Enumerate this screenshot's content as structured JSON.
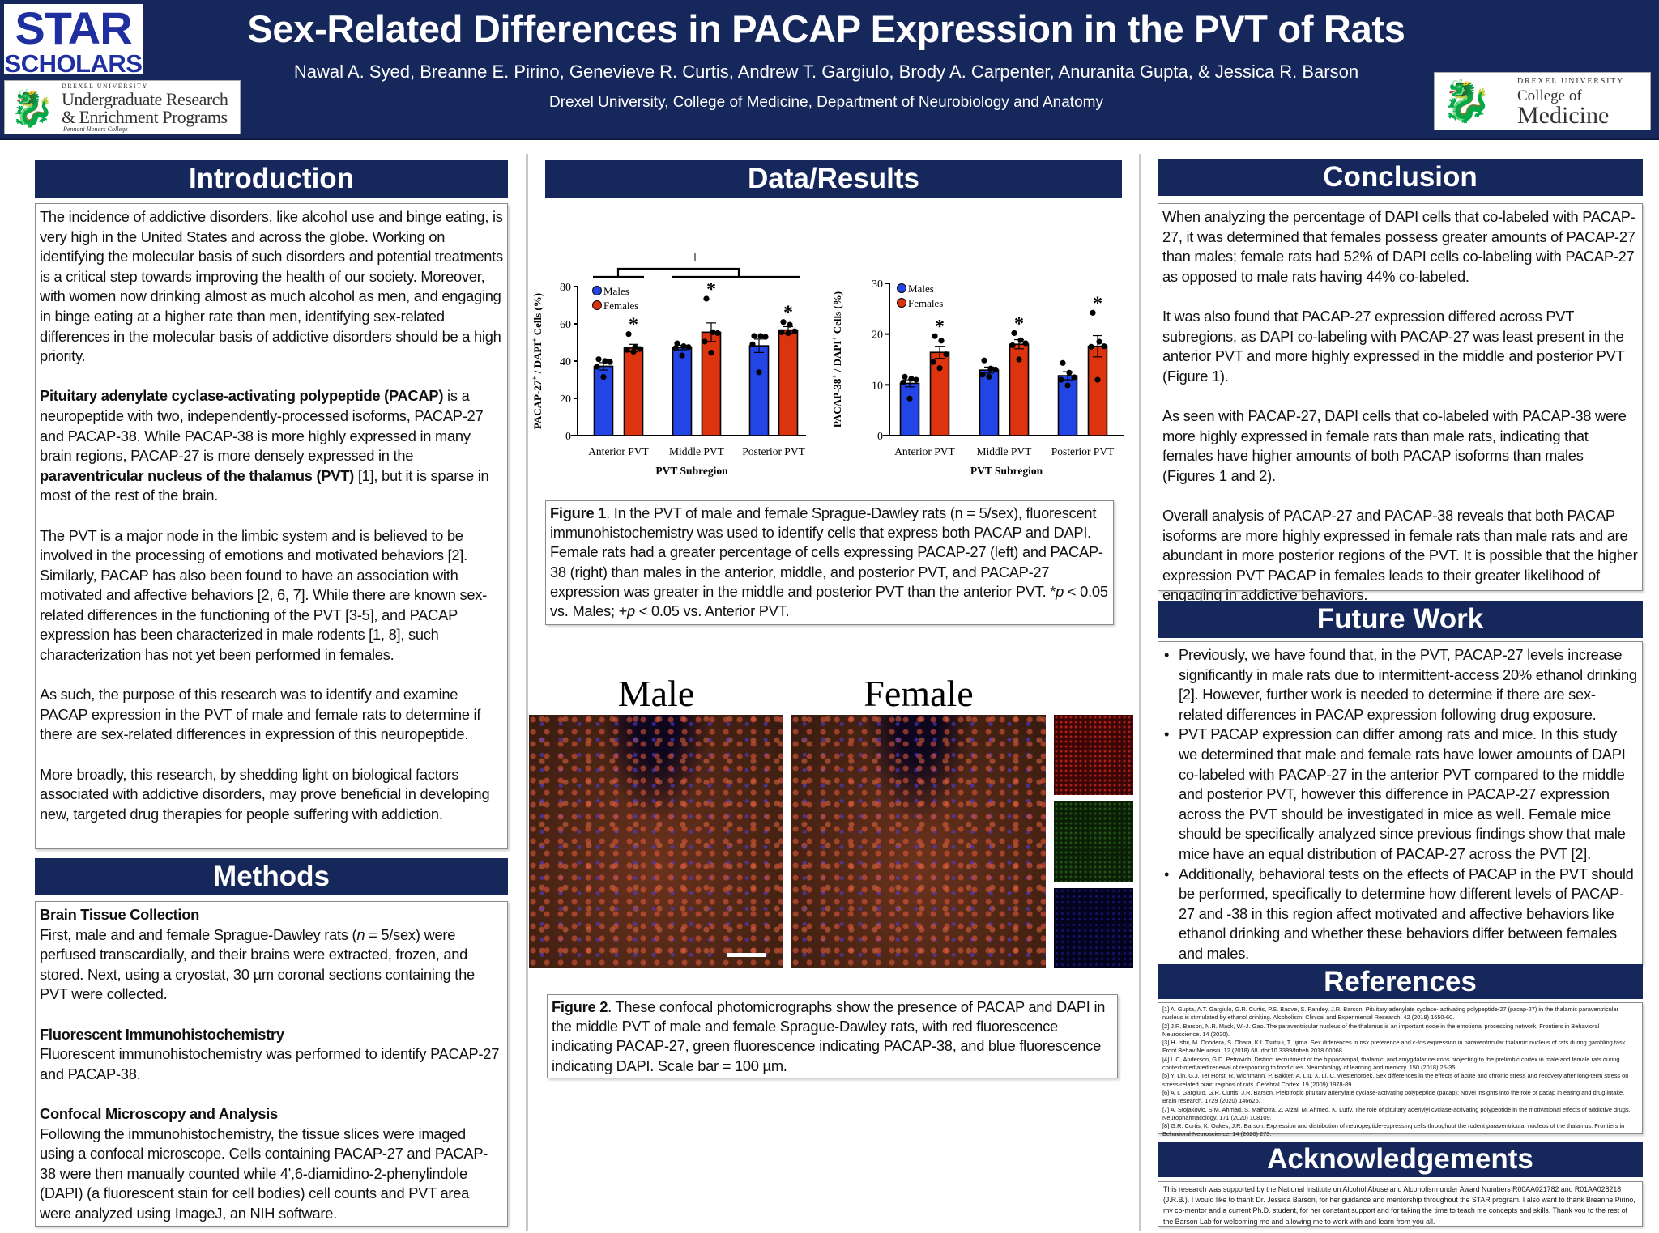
{
  "header": {
    "title": "Sex-Related Differences in PACAP Expression in the PVT of Rats",
    "authors": "Nawal A. Syed, Breanne E. Pirino, Genevieve R. Curtis, Andrew T. Gargiulo, Brody A. Carpenter, Anuranita Gupta, & Jessica R. Barson",
    "affiliation": "Drexel University, College of Medicine, Department of Neurobiology and Anatomy"
  },
  "logos": {
    "star_line1": "STAR",
    "star_line2": "SCHOLARS",
    "ure_top": "DREXEL UNIVERSITY",
    "ure_line1": "Undergraduate Research",
    "ure_line2": "& Enrichment Programs",
    "ure_bottom": "Pennoni Honors College",
    "med_top": "DREXEL UNIVERSITY",
    "med_line1": "College of",
    "med_line2": "Medicine"
  },
  "introduction": {
    "heading": "Introduction",
    "p1": "The incidence of addictive disorders, like alcohol use and binge eating, is very high in the United States and across the globe. Working on identifying the molecular basis of such disorders and potential treatments is a critical step towards improving the health of our society. Moreover, with women now drinking almost as much alcohol as men, and engaging in binge eating at a higher rate than men, identifying sex-related differences in the molecular basis of addictive disorders should be a high priority.",
    "p2_bold1": "Pituitary adenylate cyclase-activating polypeptide (PACAP)",
    "p2_text1": " is a neuropeptide with two, independently-processed isoforms, PACAP-27 and PACAP-38. While PACAP-38 is more highly expressed in many brain regions, PACAP-27 is more densely expressed in the ",
    "p2_bold2": "paraventricular nucleus of the thalamus (PVT)",
    "p2_text2": " [1], but it is sparse in most of the rest of the brain.",
    "p3": "The PVT is a major node in the limbic system and is believed to be involved in the processing of emotions and motivated behaviors [2]. Similarly, PACAP has also been found to have an association with motivated and affective behaviors [2, 6, 7]. While there are known sex-related differences in the functioning of the PVT [3-5], and PACAP expression has been characterized in male rodents [1, 8], such characterization has not yet been performed in females.",
    "p4": "As such, the purpose of this research was to identify and examine PACAP expression in the PVT of male and female rats to determine if there are sex-related differences in expression of this neuropeptide.",
    "p5": "More broadly, this research, by shedding light on biological factors associated with addictive disorders, may prove beneficial in developing new, targeted drug therapies for people suffering with addiction."
  },
  "methods": {
    "heading": "Methods",
    "s1_title": "Brain Tissue Collection",
    "s1_a": "First, male and and female Sprague-Dawley rats (",
    "s1_n": "n",
    "s1_b": " = 5/sex) were perfused transcardially, and their brains were extracted, frozen, and stored. Next, using a cryostat, 30 µm coronal sections containing the PVT were collected.",
    "s2_title": "Fluorescent Immunohistochemistry",
    "s2": "Fluorescent immunohistochemistry was performed to identify PACAP-27 and PACAP-38.",
    "s3_title": "Confocal Microscopy and Analysis",
    "s3": "Following the immunohistochemistry, the tissue slices were imaged using a confocal microscope. Cells containing PACAP-27 and PACAP-38 were then manually counted while 4',6-diamidino-2-phenylindole (DAPI) (a fluorescent stain for cell bodies) cell counts and PVT area were analyzed using ImageJ, an NIH software."
  },
  "results": {
    "heading": "Data/Results",
    "fig1_label": "Figure 1",
    "fig1_a": ". In the PVT of male and female Sprague-Dawley rats (n = 5/sex), fluorescent immunohistochemistry was used to identify cells that express both PACAP and DAPI. Female rats had a greater percentage of cells expressing PACAP-27 (left) and PACAP-38 (right) than males in the anterior, middle, and posterior PVT, and PACAP-27 expression was greater in the middle and posterior PVT than the anterior PVT. *",
    "fig1_p1": "p",
    "fig1_b": " < 0.05 vs. Males; +",
    "fig1_p2": "p",
    "fig1_c": " < 0.05 vs. Anterior PVT.",
    "male_label": "Male",
    "female_label": "Female",
    "fig2_label": "Figure 2",
    "fig2_text": ". These confocal photomicrographs show the presence of PACAP and DAPI in the middle PVT of male and female Sprague-Dawley rats, with red fluorescence indicating PACAP-27, green fluorescence indicating PACAP-38, and blue fluorescence indicating DAPI. Scale bar = 100 µm."
  },
  "chart_data": [
    {
      "type": "bar",
      "title": "",
      "xlabel": "PVT Subregion",
      "ylabel_main": "PACAP-27",
      "ylabel_sup": "+",
      "ylabel_mid": " / DAPI",
      "ylabel_sup2": "+",
      "ylabel_end": " Cells (%)",
      "categories": [
        "Anterior PVT",
        "Middle PVT",
        "Posterior PVT"
      ],
      "ylim": [
        0,
        80
      ],
      "yticks": [
        0,
        20,
        40,
        60,
        80
      ],
      "legend": {
        "placement": "top-left"
      },
      "series": [
        {
          "name": "Males",
          "color": "#2345e6",
          "values": [
            37.2,
            47.3,
            48.2
          ],
          "sem": [
            2.0,
            1.2,
            3.6
          ],
          "points": [
            [
              41,
              40,
              39.5,
              37,
              31.5
            ],
            [
              49.5,
              48,
              47.5,
              47,
              43
            ],
            [
              53.5,
              53.5,
              53,
              49,
              34
            ]
          ]
        },
        {
          "name": "Females",
          "color": "#dd3410",
          "values": [
            47,
            55.5,
            56.7
          ],
          "sem": [
            2.0,
            5.0,
            1.8
          ],
          "points": [
            [
              54.5,
              47.5,
              46.5,
              46,
              45
            ],
            [
              73.5,
              55.5,
              55,
              50.5,
              44.5
            ],
            [
              61,
              59.5,
              56,
              55.5,
              55
            ]
          ]
        }
      ],
      "significance": [
        "*",
        "*",
        "*"
      ],
      "bracket_label": "+"
    },
    {
      "type": "bar",
      "title": "",
      "xlabel": "PVT Subregion",
      "ylabel_main": "PACAP-38",
      "ylabel_sup": "+",
      "ylabel_mid": " / DAPI",
      "ylabel_sup2": "+",
      "ylabel_end": " Cells (%)",
      "categories": [
        "Anterior PVT",
        "Middle PVT",
        "Posterior PVT"
      ],
      "ylim": [
        0,
        30
      ],
      "yticks": [
        0,
        10,
        20,
        30
      ],
      "legend": {
        "placement": "top-left"
      },
      "series": [
        {
          "name": "Males",
          "color": "#2345e6",
          "values": [
            10.3,
            12.9,
            11.8
          ],
          "sem": [
            0.7,
            0.6,
            0.8
          ],
          "points": [
            [
              11.6,
              11.2,
              11,
              10.5,
              7.3
            ],
            [
              14.8,
              13.2,
              13,
              12,
              11.6
            ],
            [
              14.3,
              12.4,
              11.5,
              11,
              9.9
            ]
          ]
        },
        {
          "name": "Females",
          "color": "#dd3410",
          "values": [
            16.4,
            18,
            17.6
          ],
          "sem": [
            1.2,
            0.9,
            2.1
          ],
          "points": [
            [
              19.6,
              18.7,
              16,
              14.5,
              13.3
            ],
            [
              20.2,
              18.8,
              18.2,
              17.8,
              15
            ],
            [
              24.2,
              18.5,
              17.6,
              17.5,
              11
            ]
          ]
        }
      ],
      "significance": [
        "*",
        "*",
        "*"
      ]
    }
  ],
  "conclusion": {
    "heading": "Conclusion",
    "p1": "When analyzing the percentage of DAPI cells that co-labeled with PACAP-27, it was determined that females possess greater amounts of PACAP-27 than males; female rats had 52% of DAPI cells co-labeling with PACAP-27 as opposed to male rats having 44% co-labeled.",
    "p2": "It was also found that PACAP-27 expression differed across PVT subregions, as DAPI co-labeling with PACAP-27 was least present in the anterior PVT and more highly expressed in the middle and posterior PVT (Figure 1).",
    "p3": "As seen with PACAP-27, DAPI cells that co-labeled with PACAP-38 were more highly expressed in female rats than male rats, indicating that females have higher amounts of both PACAP isoforms than males (Figures 1 and 2).",
    "p4": "Overall analysis of PACAP-27 and PACAP-38 reveals that both PACAP isoforms are more highly expressed in female rats than male rats and are abundant in more posterior regions of the PVT. It is possible that the higher expression PVT PACAP in females leads to their greater likelihood of engaging in addictive behaviors."
  },
  "future_work": {
    "heading": "Future Work",
    "items": [
      "Previously, we have found that, in the PVT, PACAP-27 levels increase significantly in male rats due to intermittent-access 20% ethanol drinking [2]. However, further work is needed to determine if there are sex-related differences in PACAP expression following drug exposure.",
      "PVT PACAP expression can differ among rats and mice. In this study we determined that male and female rats have lower amounts of DAPI co-labeled with PACAP-27 in the anterior PVT compared to the middle and posterior PVT, however this difference in PACAP-27 expression across the PVT should be investigated in mice as well. Female mice should be specifically analyzed since previous findings show that male mice have an equal distribution of PACAP-27 across the PVT [2].",
      "Additionally, behavioral tests on the effects of PACAP in the PVT should be performed, specifically to determine how different levels of PACAP-27 and -38 in this region affect motivated and affective behaviors like ethanol drinking and whether these behaviors differ between females and males."
    ]
  },
  "references": {
    "heading": "References",
    "items": [
      "[1] A. Gupta, A.T. Gargiulo, G.R. Curtis, P.S. Badve, S. Pandey, J.R. Barson. Pituitary adenylate cyclase- activating polypeptide-27 (pacap-27) in the thalamic paraventricular nucleus is stimulated by ethanol drinking. Alcoholism: Clinical and Experimental Research. 42 (2018) 1650-60.",
      "[2]  J.R. Barson, N.R. Mack, W.-J. Gao. The paraventricular nucleus of the thalamus is an important node in the emotional processing network. Frontiers in Behavioral Neuroscience. 14 (2020).",
      "[3] H. Ishii, M. Onodera, S. Ohara, K.I. Tsutsui, T. Iijima. Sex differences in risk preference and c-fos expression in paraventricular thalamic nucleus of rats during gambling task. Front Behav Neurosci. 12 (2018) 68. doi:10.3389/fnbeh.2018.00068",
      "[4] L.C. Anderson, G.D. Petrovich. Distinct recruitment of the hippocampal, thalamic, and amygdalar neurons projecting to the prelimbic cortex in male and female rats during context-mediated renewal of responding to food cues. Neurobiology of learning and memory. 150 (2018) 25-35.",
      "[5] Y. Lin, G.J. Ter Horst, R. Wichmann, P. Bakker, A. Liu, X. Li, C. Westenbroek. Sex differences in the effects of acute and chronic stress and recovery after long-term stress on stress-related brain regions of rats. Cerebral Cortex. 19 (2009) 1978-89.",
      "[6] A.T. Gargiulo, G.R. Curtis, J.R. Barson. Pleiotropic pituitary adenylate cyclase-activating polypeptide (pacap): Novel insights into the role of pacap in eating and drug intake. Brain research. 1729 (2020) 146626.",
      "[7] A. Stojakovic, S.M. Ahmad, S. Malhotra, Z. Afzal, M. Ahmed, K. Lutfy. The role of pituitary adenylyl cyclase-activating polypeptide in the motivational effects of addictive drugs. Neuropharmacology. 171 (2020) 108109.",
      "[8] G.R. Curtis, K. Oakes, J.R. Barson. Expression and distribution of neuropeptide-expressing cells throughout the rodent paraventricular nucleus of the thalamus. Frontiers in Behavioral Neuroscience. 14 (2020) 273."
    ]
  },
  "acknowledgements": {
    "heading": "Acknowledgements",
    "text": "This research was supported by the National Institute on Alcohol Abuse and Alcoholism under Award Numbers R00AA021782 and R01AA028218 (J.R.B.). I would like to thank Dr. Jessica Barson, for her guidance and mentorship throughout the STAR program. I also want to thank Breanne Pirino, my co-mentor and a current Ph.D. student, for her constant support and for taking the time to teach me concepts and skills. Thank you to the rest of the Barson Lab for welcoming me and allowing me to work with and learn from you all."
  }
}
